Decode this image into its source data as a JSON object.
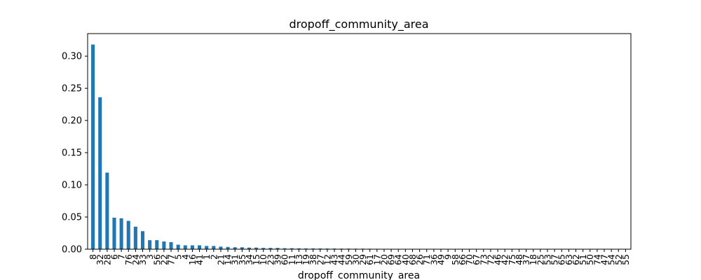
{
  "chart_data": {
    "type": "bar",
    "title": "dropoff_community_area",
    "xlabel": "dropoff_community_area",
    "ylabel": "",
    "ylim": [
      0,
      0.335
    ],
    "yticks": [
      "0.00",
      "0.05",
      "0.10",
      "0.15",
      "0.20",
      "0.25",
      "0.30"
    ],
    "grid": false,
    "bar_color": "#1f77b4",
    "categories": [
      "8",
      "32",
      "28",
      "6",
      "7",
      "76",
      "24",
      "33",
      "3",
      "56",
      "22",
      "77",
      "5",
      "4",
      "16",
      "41",
      "1",
      "2",
      "21",
      "14",
      "31",
      "35",
      "34",
      "15",
      "10",
      "23",
      "39",
      "60",
      "11",
      "13",
      "19",
      "38",
      "27",
      "12",
      "43",
      "44",
      "59",
      "30",
      "29",
      "61",
      "17",
      "20",
      "69",
      "64",
      "40",
      "68",
      "26",
      "71",
      "36",
      "49",
      "9",
      "58",
      "66",
      "70",
      "67",
      "73",
      "72",
      "46",
      "42",
      "75",
      "48",
      "37",
      "18",
      "25",
      "53",
      "57",
      "65",
      "63",
      "62",
      "51",
      "50",
      "74",
      "47",
      "54",
      "52",
      "55"
    ],
    "values": [
      0.318,
      0.236,
      0.119,
      0.049,
      0.048,
      0.044,
      0.035,
      0.028,
      0.014,
      0.014,
      0.012,
      0.011,
      0.007,
      0.006,
      0.006,
      0.006,
      0.005,
      0.005,
      0.004,
      0.0035,
      0.003,
      0.003,
      0.0025,
      0.0025,
      0.002,
      0.002,
      0.002,
      0.0015,
      0.0015,
      0.0013,
      0.0012,
      0.0012,
      0.0011,
      0.001,
      0.001,
      0.0009,
      0.0009,
      0.0008,
      0.0008,
      0.0007,
      0.0006,
      0.0005,
      0.0005,
      0.0004,
      0.0004,
      0.0004,
      0.0003,
      0.0003,
      0.0003,
      0.0003,
      0.0002,
      0.0002,
      0.0002,
      0.0002,
      0.0002,
      0.0002,
      0.0001,
      0.0001,
      0.0001,
      0.0001,
      0.0001,
      0.0001,
      0.0001,
      0.0001,
      0.0001,
      0.0001,
      0.0001,
      0.0001,
      0.0001,
      0.0001,
      0.0001,
      0.0001,
      0.0001,
      0.0001,
      0.0001,
      0.0001
    ]
  }
}
